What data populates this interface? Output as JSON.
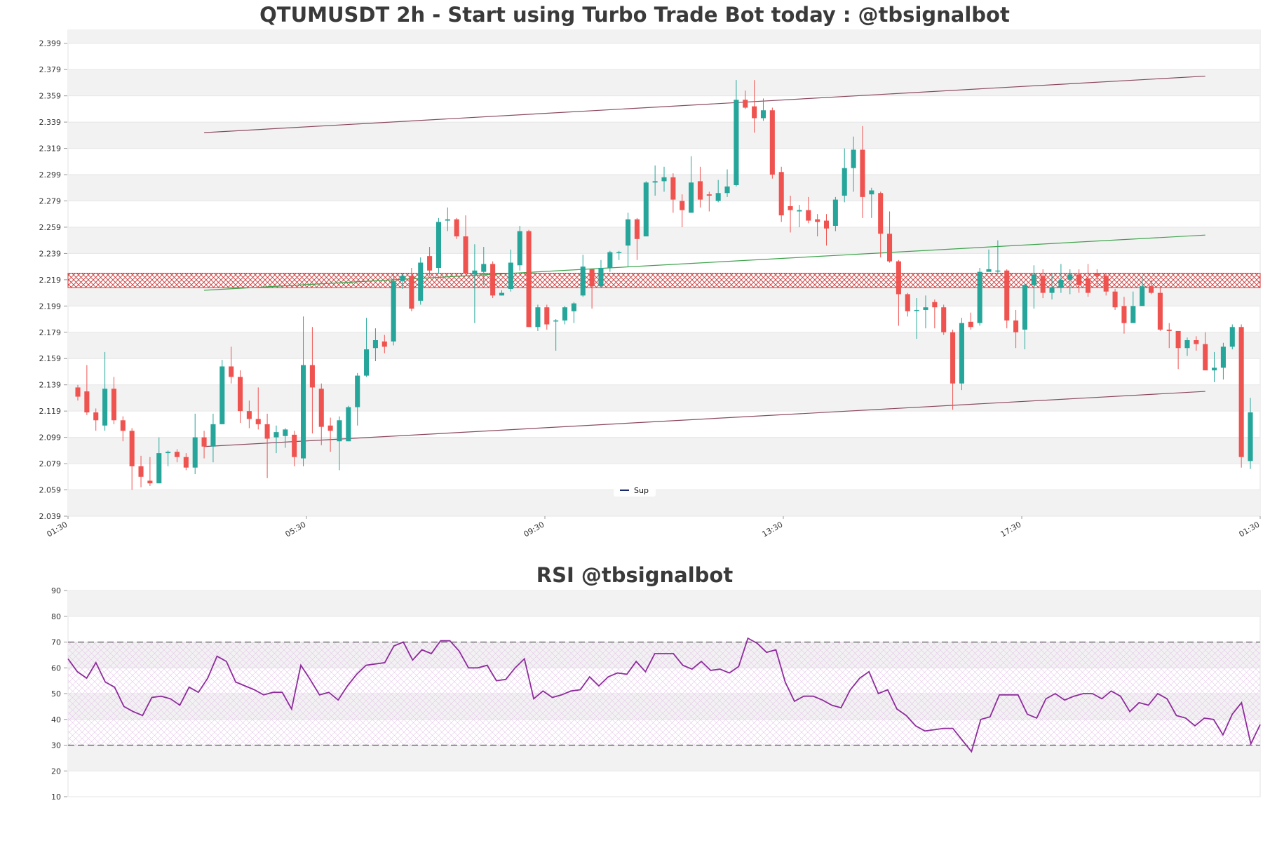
{
  "chart_data": [
    {
      "type": "candlestick",
      "title": "QTUMUSDT 2h - Start using Turbo Trade Bot today : @tbsignalbot",
      "ylim": [
        2.039,
        2.409
      ],
      "y_ticks": [
        "2.039",
        "2.059",
        "2.079",
        "2.099",
        "2.119",
        "2.139",
        "2.159",
        "2.179",
        "2.199",
        "2.219",
        "2.239",
        "2.259",
        "2.279",
        "2.299",
        "2.319",
        "2.339",
        "2.359",
        "2.379",
        "2.399"
      ],
      "x_ticks": [
        "01:30",
        "05:30",
        "09:30",
        "13:30",
        "17:30",
        "01:30"
      ],
      "legend": {
        "position": "bottom-center",
        "entries": [
          "Sup"
        ]
      },
      "colors": {
        "up": "#26a69a",
        "down": "#ef5350",
        "channel": "#8b4a5e",
        "trend": "#3fa34d",
        "zone": "#cc3333",
        "band": "#f2f2f2"
      },
      "resistance_zone": [
        2.213,
        2.224
      ],
      "lines": [
        {
          "points": [
            [
              14,
              2.331
            ],
            [
              125,
              2.374
            ]
          ],
          "color": "#8b4a5e"
        },
        {
          "points": [
            [
              14,
              2.211
            ],
            [
              125,
              2.253
            ]
          ],
          "color": "#3fa34d"
        },
        {
          "points": [
            [
              14,
              2.092
            ],
            [
              125,
              2.134
            ]
          ],
          "color": "#8b4a5e"
        }
      ],
      "candles": [
        [
          2.137,
          2.13,
          2.139,
          2.127
        ],
        [
          2.134,
          2.118,
          2.154,
          2.116
        ],
        [
          2.118,
          2.112,
          2.121,
          2.104
        ],
        [
          2.108,
          2.136,
          2.164,
          2.104
        ],
        [
          2.136,
          2.112,
          2.145,
          2.109
        ],
        [
          2.112,
          2.104,
          2.115,
          2.096
        ],
        [
          2.104,
          2.077,
          2.106,
          2.059
        ],
        [
          2.077,
          2.069,
          2.085,
          2.061
        ],
        [
          2.066,
          2.064,
          2.084,
          2.062
        ],
        [
          2.064,
          2.087,
          2.099,
          2.064
        ],
        [
          2.087,
          2.088,
          2.089,
          2.077
        ],
        [
          2.088,
          2.084,
          2.09,
          2.08
        ],
        [
          2.084,
          2.076,
          2.087,
          2.074
        ],
        [
          2.076,
          2.099,
          2.117,
          2.071
        ],
        [
          2.099,
          2.092,
          2.104,
          2.083
        ],
        [
          2.092,
          2.109,
          2.117,
          2.08
        ],
        [
          2.109,
          2.153,
          2.158,
          2.109
        ],
        [
          2.153,
          2.145,
          2.168,
          2.14
        ],
        [
          2.145,
          2.119,
          2.15,
          2.11
        ],
        [
          2.119,
          2.113,
          2.127,
          2.106
        ],
        [
          2.113,
          2.109,
          2.137,
          2.105
        ],
        [
          2.109,
          2.098,
          2.117,
          2.068
        ],
        [
          2.099,
          2.103,
          2.108,
          2.087
        ],
        [
          2.1,
          2.105,
          2.106,
          2.091
        ],
        [
          2.101,
          2.084,
          2.104,
          2.077
        ],
        [
          2.083,
          2.154,
          2.191,
          2.077
        ],
        [
          2.154,
          2.137,
          2.183,
          2.102
        ],
        [
          2.136,
          2.107,
          2.14,
          2.093
        ],
        [
          2.108,
          2.104,
          2.114,
          2.088
        ],
        [
          2.096,
          2.112,
          2.115,
          2.074
        ],
        [
          2.096,
          2.122,
          2.123,
          2.096
        ],
        [
          2.122,
          2.146,
          2.148,
          2.108
        ],
        [
          2.146,
          2.166,
          2.19,
          2.145
        ],
        [
          2.167,
          2.173,
          2.182,
          2.157
        ],
        [
          2.172,
          2.168,
          2.177,
          2.163
        ],
        [
          2.172,
          2.218,
          2.224,
          2.169
        ],
        [
          2.218,
          2.222,
          2.224,
          2.212
        ],
        [
          2.222,
          2.197,
          2.228,
          2.195
        ],
        [
          2.203,
          2.232,
          2.236,
          2.2
        ],
        [
          2.237,
          2.226,
          2.244,
          2.222
        ],
        [
          2.228,
          2.263,
          2.266,
          2.224
        ],
        [
          2.264,
          2.265,
          2.274,
          2.256
        ],
        [
          2.265,
          2.252,
          2.266,
          2.25
        ],
        [
          2.252,
          2.224,
          2.268,
          2.223
        ],
        [
          2.223,
          2.226,
          2.246,
          2.186
        ],
        [
          2.225,
          2.231,
          2.244,
          2.215
        ],
        [
          2.231,
          2.207,
          2.233,
          2.205
        ],
        [
          2.207,
          2.209,
          2.211,
          2.207
        ],
        [
          2.212,
          2.232,
          2.242,
          2.21
        ],
        [
          2.23,
          2.256,
          2.26,
          2.226
        ],
        [
          2.256,
          2.183,
          2.257,
          2.183
        ],
        [
          2.183,
          2.198,
          2.2,
          2.18
        ],
        [
          2.198,
          2.185,
          2.2,
          2.181
        ],
        [
          2.188,
          2.188,
          2.189,
          2.165
        ],
        [
          2.188,
          2.198,
          2.199,
          2.185
        ],
        [
          2.195,
          2.201,
          2.202,
          2.186
        ],
        [
          2.207,
          2.229,
          2.238,
          2.206
        ],
        [
          2.227,
          2.214,
          2.224,
          2.197
        ],
        [
          2.214,
          2.228,
          2.234,
          2.213
        ],
        [
          2.228,
          2.24,
          2.241,
          2.225
        ],
        [
          2.24,
          2.24,
          2.241,
          2.234
        ],
        [
          2.245,
          2.265,
          2.27,
          2.229
        ],
        [
          2.265,
          2.25,
          2.266,
          2.234
        ],
        [
          2.252,
          2.293,
          2.294,
          2.252
        ],
        [
          2.293,
          2.294,
          2.306,
          2.283
        ],
        [
          2.294,
          2.297,
          2.305,
          2.286
        ],
        [
          2.297,
          2.28,
          2.3,
          2.27
        ],
        [
          2.279,
          2.272,
          2.284,
          2.259
        ],
        [
          2.27,
          2.293,
          2.313,
          2.27
        ],
        [
          2.294,
          2.28,
          2.305,
          2.274
        ],
        [
          2.284,
          2.283,
          2.286,
          2.271
        ],
        [
          2.279,
          2.285,
          2.295,
          2.278
        ],
        [
          2.285,
          2.29,
          2.303,
          2.282
        ],
        [
          2.291,
          2.356,
          2.371,
          2.29
        ],
        [
          2.356,
          2.35,
          2.363,
          2.349
        ],
        [
          2.351,
          2.342,
          2.371,
          2.331
        ],
        [
          2.342,
          2.348,
          2.357,
          2.34
        ],
        [
          2.348,
          2.299,
          2.35,
          2.296
        ],
        [
          2.301,
          2.268,
          2.305,
          2.263
        ],
        [
          2.275,
          2.272,
          2.283,
          2.255
        ],
        [
          2.271,
          2.272,
          2.276,
          2.259
        ],
        [
          2.272,
          2.264,
          2.282,
          2.262
        ],
        [
          2.265,
          2.263,
          2.269,
          2.252
        ],
        [
          2.264,
          2.258,
          2.269,
          2.245
        ],
        [
          2.26,
          2.28,
          2.282,
          2.256
        ],
        [
          2.283,
          2.304,
          2.319,
          2.278
        ],
        [
          2.304,
          2.318,
          2.328,
          2.286
        ],
        [
          2.318,
          2.282,
          2.336,
          2.266
        ],
        [
          2.284,
          2.287,
          2.289,
          2.266
        ],
        [
          2.285,
          2.254,
          2.286,
          2.236
        ],
        [
          2.254,
          2.233,
          2.271,
          2.232
        ],
        [
          2.233,
          2.208,
          2.234,
          2.184
        ],
        [
          2.208,
          2.195,
          2.209,
          2.191
        ],
        [
          2.196,
          2.196,
          2.205,
          2.174
        ],
        [
          2.196,
          2.198,
          2.207,
          2.182
        ],
        [
          2.202,
          2.198,
          2.204,
          2.182
        ],
        [
          2.198,
          2.179,
          2.2,
          2.177
        ],
        [
          2.179,
          2.14,
          2.181,
          2.12
        ],
        [
          2.14,
          2.186,
          2.19,
          2.135
        ],
        [
          2.187,
          2.183,
          2.194,
          2.181
        ],
        [
          2.186,
          2.225,
          2.228,
          2.184
        ],
        [
          2.225,
          2.227,
          2.242,
          2.225
        ],
        [
          2.226,
          2.226,
          2.249,
          2.223
        ],
        [
          2.226,
          2.188,
          2.227,
          2.182
        ],
        [
          2.188,
          2.179,
          2.196,
          2.167
        ],
        [
          2.181,
          2.215,
          2.216,
          2.166
        ],
        [
          2.215,
          2.223,
          2.23,
          2.197
        ],
        [
          2.222,
          2.209,
          2.227,
          2.205
        ],
        [
          2.209,
          2.213,
          2.224,
          2.204
        ],
        [
          2.213,
          2.219,
          2.231,
          2.209
        ],
        [
          2.219,
          2.223,
          2.227,
          2.208
        ],
        [
          2.223,
          2.215,
          2.227,
          2.209
        ],
        [
          2.22,
          2.209,
          2.231,
          2.206
        ],
        [
          2.224,
          2.222,
          2.227,
          2.213
        ],
        [
          2.222,
          2.21,
          2.224,
          2.207
        ],
        [
          2.21,
          2.198,
          2.212,
          2.196
        ],
        [
          2.199,
          2.186,
          2.206,
          2.178
        ],
        [
          2.186,
          2.199,
          2.21,
          2.188
        ],
        [
          2.199,
          2.214,
          2.222,
          2.201
        ],
        [
          2.214,
          2.209,
          2.219,
          2.208
        ],
        [
          2.209,
          2.181,
          2.213,
          2.18
        ],
        [
          2.181,
          2.18,
          2.186,
          2.167
        ],
        [
          2.18,
          2.167,
          2.178,
          2.151
        ],
        [
          2.167,
          2.173,
          2.175,
          2.161
        ],
        [
          2.173,
          2.17,
          2.176,
          2.165
        ],
        [
          2.17,
          2.15,
          2.179,
          2.151
        ],
        [
          2.15,
          2.152,
          2.164,
          2.141
        ],
        [
          2.152,
          2.168,
          2.171,
          2.143
        ],
        [
          2.168,
          2.183,
          2.185,
          2.166
        ],
        [
          2.183,
          2.084,
          2.185,
          2.076
        ],
        [
          2.081,
          2.118,
          2.129,
          2.075
        ]
      ],
      "ohlc_order": [
        "open",
        "close",
        "high",
        "low"
      ]
    },
    {
      "type": "line",
      "title": "RSI @tbsignalbot",
      "ylim": [
        10,
        90
      ],
      "y_ticks": [
        "10",
        "20",
        "30",
        "40",
        "50",
        "60",
        "70",
        "80",
        "90"
      ],
      "levels": [
        30,
        70
      ],
      "colors": {
        "line": "#8e2c9c",
        "band": "#f2f2f2",
        "zone": "#e8c8ee"
      },
      "values": [
        63.5,
        58.5,
        56.0,
        62.0,
        54.5,
        52.5,
        45.0,
        43.0,
        41.5,
        48.5,
        49.0,
        48.0,
        45.5,
        52.5,
        50.5,
        56.0,
        64.5,
        62.5,
        54.5,
        53.0,
        51.5,
        49.5,
        50.5,
        50.5,
        44.0,
        61.0,
        55.5,
        49.5,
        50.5,
        47.5,
        53.0,
        57.5,
        61.0,
        61.5,
        62.0,
        68.5,
        70.0,
        63.0,
        67.0,
        65.5,
        70.5,
        70.5,
        66.5,
        60.0,
        60.0,
        61.0,
        55.0,
        55.5,
        60.0,
        63.5,
        48.0,
        51.0,
        48.5,
        49.5,
        51.0,
        51.5,
        56.5,
        53.0,
        56.5,
        58.0,
        57.5,
        62.5,
        58.5,
        65.5,
        65.5,
        65.5,
        61.0,
        59.5,
        62.5,
        59.0,
        59.5,
        58.0,
        60.5,
        71.5,
        69.5,
        66.0,
        67.0,
        54.5,
        47.0,
        49.0,
        49.0,
        47.5,
        45.5,
        44.5,
        51.5,
        56.0,
        58.5,
        50.0,
        51.5,
        44.0,
        41.5,
        37.5,
        35.5,
        36.0,
        36.5,
        36.5,
        32.0,
        27.5,
        40.0,
        41.0,
        49.5,
        49.5,
        49.5,
        42.0,
        40.5,
        48.0,
        50.0,
        47.5,
        49.0,
        50.0,
        50.0,
        48.0,
        51.0,
        49.0,
        43.0,
        46.5,
        45.5,
        50.0,
        48.0,
        41.5,
        40.5,
        37.5,
        40.5,
        40.0,
        34.0,
        42.0,
        46.5,
        30.5,
        38.0
      ]
    }
  ],
  "legend_label": "Sup"
}
